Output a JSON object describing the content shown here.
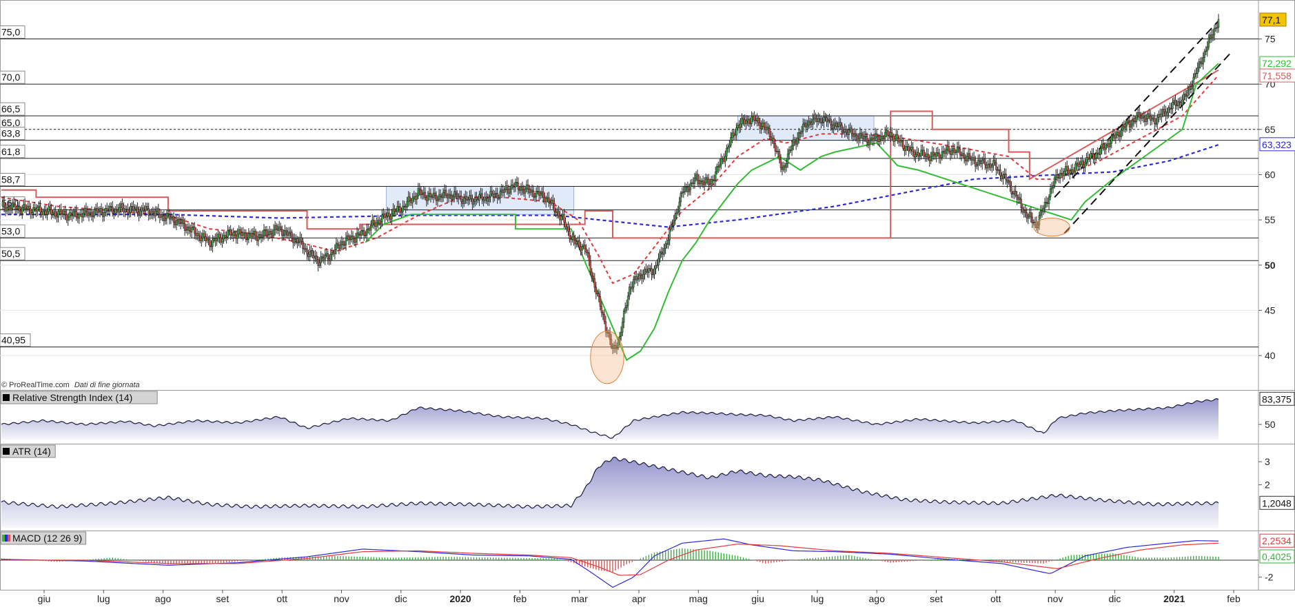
{
  "source_note": {
    "copyright": "© ProRealTime.com",
    "note": "Dati di fine giornata"
  },
  "colors": {
    "up_candle": "#3cb043",
    "down_candle": "#d9534f",
    "ema_fast": "#e23a3a",
    "ma_slow": "#2a2ad8",
    "stop_green": "#33bb33",
    "stop_red": "#d85a5a",
    "band_fill": "#8a8ac8",
    "last_price_badge": "#f5c400"
  },
  "chart_data": [
    {
      "type": "candlestick",
      "panel": "price",
      "y_range": [
        36.5,
        79
      ],
      "y_ticks": [
        "75",
        "70",
        "65",
        "60",
        "55",
        "50",
        "45",
        "40"
      ],
      "x_ticks": [
        "giu",
        "lug",
        "ago",
        "set",
        "ott",
        "nov",
        "dic",
        "2020",
        "feb",
        "mar",
        "apr",
        "mag",
        "giu",
        "lug",
        "ago",
        "set",
        "ott",
        "nov",
        "dic",
        "2021",
        "feb"
      ],
      "bold_ticks": [
        "50",
        "2020",
        "2021"
      ],
      "horizontal_levels": [
        {
          "value": 75.0,
          "label": "75,0"
        },
        {
          "value": 70.0,
          "label": "70,0"
        },
        {
          "value": 66.5,
          "label": "66,5"
        },
        {
          "value": 65.0,
          "label": "65,0",
          "dashed": true
        },
        {
          "value": 63.8,
          "label": "63,8"
        },
        {
          "value": 61.8,
          "label": "61,8"
        },
        {
          "value": 58.7,
          "label": "58,7"
        },
        {
          "value": 56.1,
          "label": "56,1"
        },
        {
          "value": 53.0,
          "label": "53,0"
        },
        {
          "value": 50.5,
          "label": "50,5"
        },
        {
          "value": 40.95,
          "label": "40,95"
        }
      ],
      "last_values": [
        {
          "label": "77,1",
          "value": 77.1,
          "style": "badge"
        },
        {
          "label": "72,292",
          "value": 72.292,
          "color": "#33bb33"
        },
        {
          "label": "71,558",
          "value": 71.558,
          "color": "#d85a5a"
        },
        {
          "label": "63,323",
          "value": 63.323,
          "color": "#2a2ad8"
        }
      ],
      "series": [
        {
          "kind": "close",
          "x": [
            0,
            30,
            50,
            65,
            85,
            105,
            125,
            140,
            150,
            165,
            185,
            200,
            215,
            220,
            228,
            236,
            245,
            260,
            272,
            290,
            300,
            310,
            322,
            335,
            350,
            360,
            368,
            380,
            392,
            404,
            412,
            420,
            430,
            440
          ],
          "y": [
            56.5,
            56.0,
            55.5,
            55.8,
            56.2,
            56.0,
            55.0,
            53.5,
            52.5,
            53.5,
            53.2,
            54.0,
            52.5,
            51.5,
            50.5,
            51.0,
            52.5,
            53.5,
            55.0,
            56.5,
            58.0,
            57.5,
            57.8,
            57.2,
            57.5,
            58.0,
            58.8,
            58.2,
            57.5,
            55.0,
            52.5,
            52.0,
            46.0,
            40.5
          ]
        },
        {
          "kind": "close_cont",
          "x": [
            445,
            452,
            460,
            470,
            480,
            490,
            500,
            510,
            520,
            530,
            540,
            548,
            555,
            562,
            570,
            580,
            590,
            600,
            612,
            625,
            640,
            655,
            670,
            685,
            700,
            715,
            725,
            738,
            745,
            752,
            760,
            770,
            780,
            790,
            800,
            810,
            820,
            830,
            842,
            852,
            862,
            870,
            876
          ],
          "y": [
            42.0,
            47.5,
            49.0,
            49.5,
            53.0,
            58.0,
            59.5,
            59.0,
            62.0,
            65.5,
            66.2,
            65.5,
            64.0,
            60.5,
            63.5,
            65.8,
            66.2,
            65.5,
            64.5,
            63.8,
            64.5,
            62.5,
            62.0,
            62.8,
            61.5,
            61.0,
            59.0,
            55.5,
            54.5,
            57.0,
            60.0,
            60.5,
            61.5,
            62.5,
            64.0,
            65.5,
            66.5,
            66.0,
            67.5,
            68.5,
            72.0,
            75.0,
            77.1
          ]
        },
        {
          "kind": "ema_fast",
          "x": [
            0,
            40,
            80,
            120,
            150,
            180,
            215,
            240,
            270,
            300,
            330,
            360,
            395,
            415,
            430,
            440,
            455,
            470,
            490,
            510,
            530,
            550,
            565,
            590,
            620,
            650,
            690,
            725,
            745,
            760,
            790,
            820,
            850,
            876
          ],
          "y": [
            57.5,
            56.5,
            56.0,
            55.5,
            54.0,
            53.5,
            52.5,
            51.5,
            53.0,
            55.5,
            57.5,
            57.5,
            57.0,
            55.0,
            51.0,
            48.0,
            49.0,
            52.0,
            56.0,
            58.5,
            62.0,
            64.0,
            63.5,
            64.5,
            64.5,
            64.0,
            63.0,
            62.0,
            59.5,
            59.5,
            61.5,
            64.0,
            66.5,
            71.0
          ]
        },
        {
          "kind": "ma_slow",
          "x": [
            0,
            120,
            200,
            300,
            400,
            430,
            480,
            530,
            600,
            650,
            700,
            760,
            800,
            840,
            876
          ],
          "y": [
            55.6,
            55.6,
            55.2,
            55.5,
            55.5,
            55.0,
            54.2,
            55.0,
            56.5,
            58.0,
            59.5,
            60.0,
            60.3,
            61.5,
            63.3
          ]
        },
        {
          "kind": "stop_red",
          "x": [
            0,
            25,
            25,
            120,
            120,
            220,
            220,
            258,
            258,
            420,
            420,
            440,
            440,
            640,
            640,
            670,
            670,
            725,
            725,
            740,
            740,
            876
          ],
          "y": [
            58.3,
            58.3,
            57.5,
            57.5,
            56.0,
            56.0,
            54.0,
            54.0,
            54.5,
            54.5,
            56.0,
            56.0,
            53.0,
            53.0,
            67.0,
            67.0,
            65.0,
            65.0,
            62.5,
            62.5,
            59.5,
            71.558
          ]
        },
        {
          "kind": "stop_green",
          "x": [
            262,
            275,
            295,
            370,
            370,
            410,
            450,
            460,
            470,
            480,
            490,
            500,
            510,
            530,
            540,
            560,
            575,
            590,
            600,
            630,
            645,
            660,
            770,
            780,
            800,
            850,
            860,
            876
          ],
          "y": [
            52.5,
            54.5,
            55.6,
            55.6,
            54.0,
            54.0,
            39.5,
            40.5,
            43.0,
            47.0,
            50.5,
            52.5,
            55.0,
            59.0,
            60.5,
            62.0,
            60.5,
            62.0,
            62.5,
            63.5,
            61.0,
            60.5,
            55.0,
            57.0,
            59.5,
            65.0,
            70.0,
            72.292
          ]
        },
        {
          "kind": "trend_upper",
          "x": [
            758,
            876
          ],
          "y": [
            57.5,
            77.0
          ]
        },
        {
          "kind": "trend_lower",
          "x": [
            765,
            885
          ],
          "y": [
            53.5,
            73.5
          ]
        }
      ],
      "zones": [
        {
          "x0": 277,
          "x1": 412,
          "y0": 55.6,
          "y1": 58.7
        },
        {
          "x0": 530,
          "x1": 628,
          "y0": 63.8,
          "y1": 66.5
        }
      ],
      "ellipses": [
        {
          "x": 436,
          "y": 39.8,
          "rx": 12,
          "ry": 2.9
        },
        {
          "x": 756,
          "y": 54.2,
          "rx": 13,
          "ry": 1.0
        }
      ]
    },
    {
      "type": "area",
      "panel": "rsi",
      "title": "Relative Strength Index (14)",
      "y_range": [
        30,
        90
      ],
      "y_ticks": [
        "50"
      ],
      "last_value": "83,375",
      "x": [
        0,
        30,
        60,
        90,
        110,
        140,
        170,
        200,
        220,
        250,
        280,
        300,
        330,
        360,
        390,
        410,
        425,
        440,
        455,
        470,
        490,
        510,
        530,
        550,
        570,
        600,
        630,
        660,
        700,
        730,
        750,
        760,
        780,
        800,
        820,
        840,
        860,
        876
      ],
      "y": [
        50,
        55,
        50,
        54,
        48,
        55,
        52,
        60,
        45,
        58,
        55,
        72,
        68,
        60,
        58,
        50,
        40,
        32,
        55,
        60,
        66,
        65,
        63,
        62,
        55,
        60,
        50,
        57,
        52,
        55,
        38,
        58,
        65,
        68,
        70,
        72,
        80,
        83
      ]
    },
    {
      "type": "area",
      "panel": "atr",
      "title": "ATR (14)",
      "y_range": [
        0.2,
        3.6
      ],
      "y_ticks": [
        "3",
        "2"
      ],
      "last_value": "1,2048",
      "x": [
        0,
        40,
        80,
        120,
        150,
        180,
        220,
        260,
        300,
        340,
        380,
        410,
        420,
        430,
        440,
        450,
        470,
        490,
        510,
        530,
        550,
        570,
        590,
        620,
        650,
        680,
        720,
        760,
        790,
        830,
        860,
        876
      ],
      "y": [
        1.25,
        1.05,
        1.2,
        1.45,
        1.15,
        1.05,
        1.1,
        1.05,
        1.2,
        1.15,
        1.05,
        1.1,
        1.8,
        2.8,
        3.15,
        3.05,
        2.8,
        2.55,
        2.3,
        2.6,
        2.4,
        2.35,
        2.2,
        1.7,
        1.35,
        1.25,
        1.2,
        1.55,
        1.35,
        1.15,
        1.2,
        1.2
      ]
    },
    {
      "type": "line",
      "panel": "macd",
      "title": "MACD (12 26 9)",
      "y_range": [
        -3.0,
        3.0
      ],
      "y_ticks": [
        "-2"
      ],
      "last_values": [
        "2,2534",
        "0,4025"
      ],
      "histogram": {
        "x": [
          0,
          40,
          80,
          120,
          160,
          200,
          240,
          280,
          320,
          360,
          400,
          415,
          430,
          440,
          450,
          470,
          490,
          510,
          530,
          550,
          580,
          610,
          640,
          680,
          720,
          750,
          770,
          800,
          820,
          840,
          860,
          876
        ],
        "y": [
          0.2,
          -0.2,
          0.3,
          -0.5,
          -0.3,
          0.3,
          0.5,
          0.3,
          0.4,
          0.3,
          0.2,
          -0.5,
          -1.2,
          -1.4,
          -0.5,
          0.9,
          1.4,
          1.1,
          0.5,
          -0.4,
          0.2,
          0.6,
          -0.3,
          0.2,
          -0.2,
          -0.4,
          0.6,
          0.8,
          0.3,
          0.3,
          0.5,
          0.4
        ]
      },
      "macd_line": {
        "x": [
          0,
          60,
          120,
          170,
          220,
          260,
          300,
          340,
          380,
          410,
          425,
          440,
          455,
          470,
          490,
          520,
          540,
          570,
          600,
          640,
          680,
          720,
          755,
          780,
          810,
          840,
          860,
          876
        ],
        "y": [
          0.1,
          -0.1,
          -0.6,
          -0.3,
          0.4,
          1.3,
          1.0,
          0.6,
          0.5,
          0.1,
          -1.5,
          -3.2,
          -2.0,
          0.5,
          2.0,
          2.5,
          1.8,
          1.1,
          1.0,
          0.7,
          0.1,
          -0.4,
          -1.6,
          0.5,
          1.5,
          2.0,
          2.3,
          2.25
        ]
      },
      "signal_line": {
        "x": [
          0,
          60,
          120,
          170,
          220,
          260,
          300,
          340,
          380,
          410,
          430,
          445,
          460,
          480,
          500,
          530,
          560,
          600,
          640,
          680,
          720,
          760,
          790,
          820,
          850,
          876
        ],
        "y": [
          0.0,
          0.0,
          -0.4,
          -0.4,
          0.2,
          1.0,
          1.1,
          0.8,
          0.6,
          0.3,
          -0.8,
          -1.8,
          -1.7,
          0.0,
          1.2,
          1.9,
          1.7,
          1.1,
          0.8,
          0.3,
          -0.2,
          -1.0,
          0.2,
          1.2,
          1.8,
          2.0
        ]
      }
    }
  ]
}
